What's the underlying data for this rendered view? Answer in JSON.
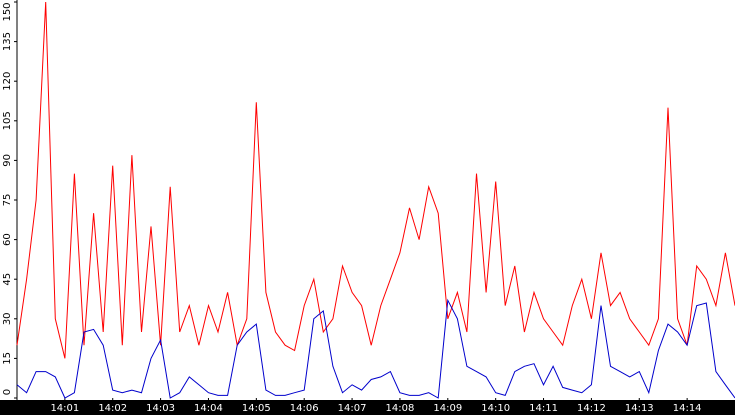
{
  "chart_data": {
    "type": "line",
    "x": [
      0,
      0.2,
      0.4,
      0.6,
      0.8,
      1,
      1.2,
      1.4,
      1.6,
      1.8,
      2,
      2.2,
      2.4,
      2.6,
      2.8,
      3,
      3.2,
      3.4,
      3.6,
      3.8,
      4,
      4.2,
      4.4,
      4.6,
      4.8,
      5,
      5.2,
      5.4,
      5.6,
      5.8,
      6,
      6.2,
      6.4,
      6.6,
      6.8,
      7,
      7.2,
      7.4,
      7.6,
      7.8,
      8,
      8.2,
      8.4,
      8.6,
      8.8,
      9,
      9.2,
      9.4,
      9.6,
      9.8,
      10,
      10.2,
      10.4,
      10.6,
      10.8,
      11,
      11.2,
      11.4,
      11.6,
      11.8,
      12,
      12.2,
      12.4,
      12.6,
      12.8,
      13,
      13.2,
      13.4,
      13.6,
      13.8,
      14,
      14.2,
      14.4,
      14.6,
      14.8,
      15
    ],
    "series": [
      {
        "color": "#ff0000",
        "values": [
          20,
          45,
          75,
          150,
          30,
          15,
          85,
          20,
          70,
          25,
          88,
          20,
          92,
          25,
          65,
          20,
          80,
          25,
          35,
          20,
          35,
          25,
          40,
          20,
          30,
          112,
          40,
          25,
          20,
          18,
          35,
          45,
          25,
          30,
          50,
          40,
          35,
          20,
          35,
          45,
          55,
          72,
          60,
          80,
          70,
          30,
          40,
          25,
          85,
          40,
          82,
          35,
          50,
          25,
          40,
          30,
          25,
          20,
          35,
          45,
          30,
          55,
          35,
          40,
          30,
          25,
          20,
          30,
          110,
          30,
          20,
          50,
          45,
          35,
          55,
          35
        ]
      },
      {
        "color": "#0000cc",
        "values": [
          5,
          2,
          10,
          10,
          8,
          0,
          2,
          25,
          26,
          20,
          3,
          2,
          3,
          2,
          15,
          22,
          0,
          2,
          8,
          5,
          2,
          1,
          1,
          20,
          25,
          28,
          3,
          1,
          1,
          2,
          3,
          30,
          33,
          12,
          2,
          5,
          3,
          7,
          8,
          10,
          2,
          1,
          1,
          2,
          0,
          37,
          30,
          12,
          10,
          8,
          2,
          1,
          10,
          12,
          13,
          5,
          12,
          4,
          3,
          2,
          5,
          35,
          12,
          10,
          8,
          10,
          2,
          18,
          28,
          25,
          20,
          35,
          36,
          10,
          5,
          0
        ]
      }
    ],
    "xlim": [
      0,
      15
    ],
    "xticks": [
      {
        "value": 1,
        "label": "14:01"
      },
      {
        "value": 2,
        "label": "14:02"
      },
      {
        "value": 3,
        "label": "14:03"
      },
      {
        "value": 4,
        "label": "14:04"
      },
      {
        "value": 5,
        "label": "14:05"
      },
      {
        "value": 6,
        "label": "14:06"
      },
      {
        "value": 7,
        "label": "14:07"
      },
      {
        "value": 8,
        "label": "14:08"
      },
      {
        "value": 9,
        "label": "14:09"
      },
      {
        "value": 10,
        "label": "14:10"
      },
      {
        "value": 11,
        "label": "14:11"
      },
      {
        "value": 12,
        "label": "14:12"
      },
      {
        "value": 13,
        "label": "14:13"
      },
      {
        "value": 14,
        "label": "14:14"
      }
    ],
    "ylim": [
      0,
      150
    ],
    "yticks": [
      0,
      15,
      30,
      45,
      60,
      75,
      90,
      105,
      120,
      135,
      150
    ]
  }
}
